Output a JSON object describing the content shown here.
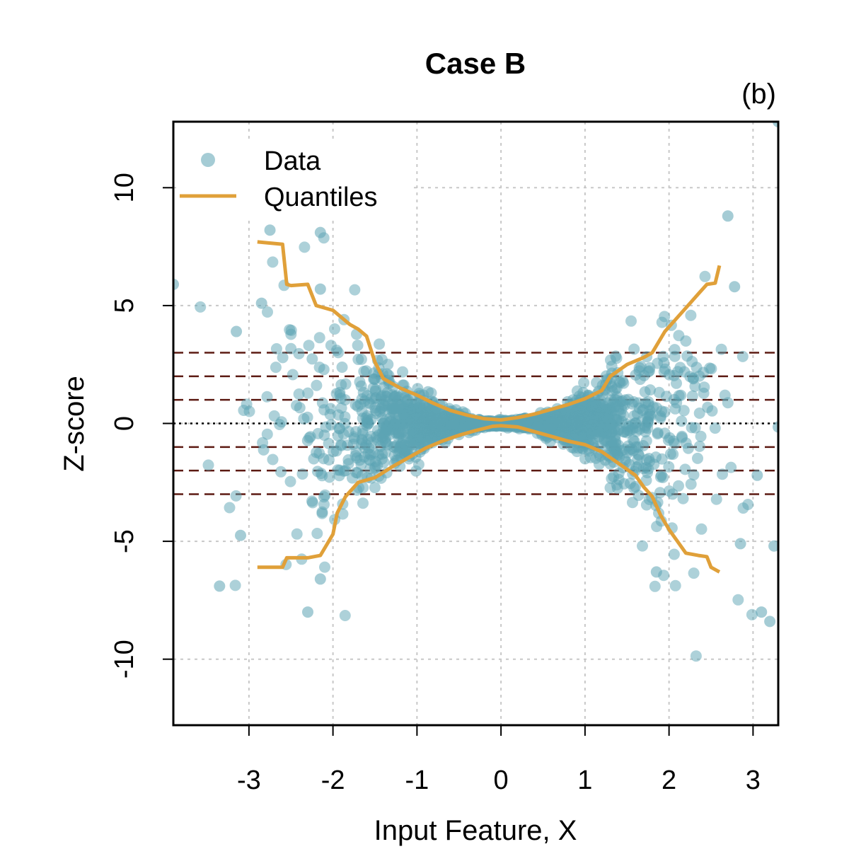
{
  "chart_data": {
    "type": "scatter",
    "title": "Case B",
    "panel_label": "(b)",
    "xlabel": "Input Feature, X",
    "ylabel": "Z-score",
    "xlim": [
      -3.9,
      3.3
    ],
    "ylim": [
      -12.8,
      12.8
    ],
    "x_ticks": [
      -3,
      -2,
      -1,
      0,
      1,
      2,
      3
    ],
    "y_ticks": [
      -10,
      -5,
      0,
      5,
      10
    ],
    "x_tick_labels": [
      "-3",
      "-2",
      "-1",
      "0",
      "1",
      "2",
      "3"
    ],
    "y_tick_labels": [
      "-10",
      "-5",
      "0",
      "5",
      "10"
    ],
    "grid": true,
    "legend": {
      "position": "top-left",
      "entries": [
        {
          "label": "Data",
          "kind": "point"
        },
        {
          "label": "Quantiles",
          "kind": "line"
        }
      ]
    },
    "colors": {
      "data": "#5ba3b3",
      "quantiles": "#e0a039",
      "reference_dashed": "#5c1a12",
      "zero_line": "#000000",
      "grid": "#c8c8c8"
    },
    "reference_lines_y": [
      -3,
      -2,
      -1,
      1,
      2,
      3
    ],
    "zero_line_y": 0,
    "data_model": {
      "n_points": 2600,
      "description": "Gaussian X, noise sd grows with |X|",
      "notable_points": [
        {
          "x": -3.9,
          "y": 5.9
        },
        {
          "x": -3.35,
          "y": -6.9
        },
        {
          "x": -3.1,
          "y": -4.75
        },
        {
          "x": -3.15,
          "y": 3.9
        },
        {
          "x": -2.85,
          "y": 5.1
        },
        {
          "x": -2.3,
          "y": -8.0
        },
        {
          "x": -2.15,
          "y": 8.1
        },
        {
          "x": -2.15,
          "y": 5.7
        },
        {
          "x": -2.15,
          "y": -6.6
        },
        {
          "x": -2.75,
          "y": 8.2
        },
        {
          "x": 2.7,
          "y": 8.8
        },
        {
          "x": 2.78,
          "y": 5.8
        },
        {
          "x": 3.1,
          "y": -8.0
        },
        {
          "x": 3.2,
          "y": -8.4
        },
        {
          "x": 3.25,
          "y": -5.2
        },
        {
          "x": 3.3,
          "y": 12.8
        },
        {
          "x": 3.3,
          "y": -0.15
        },
        {
          "x": 2.85,
          "y": -5.1
        },
        {
          "x": 3.05,
          "y": -2.2
        },
        {
          "x": 1.85,
          "y": -6.3
        }
      ]
    },
    "series": [
      {
        "name": "Upper quantile",
        "x": [
          -2.9,
          -2.6,
          -2.55,
          -2.5,
          -2.3,
          -2.2,
          -2.0,
          -1.8,
          -1.7,
          -1.6,
          -1.5,
          -1.4,
          -1.2,
          -1.0,
          -0.8,
          -0.6,
          -0.4,
          -0.2,
          0.0,
          0.2,
          0.4,
          0.6,
          0.8,
          1.0,
          1.2,
          1.3,
          1.5,
          1.7,
          1.8,
          1.95,
          2.1,
          2.25,
          2.35,
          2.45,
          2.55,
          2.6
        ],
        "values": [
          7.7,
          7.6,
          5.9,
          5.85,
          5.9,
          5.0,
          4.8,
          4.2,
          4.0,
          3.7,
          2.6,
          1.9,
          1.5,
          1.2,
          0.85,
          0.55,
          0.35,
          0.2,
          0.15,
          0.25,
          0.4,
          0.6,
          0.8,
          1.05,
          1.4,
          2.0,
          2.5,
          2.8,
          3.0,
          3.9,
          4.5,
          5.1,
          5.5,
          5.9,
          5.95,
          6.7
        ]
      },
      {
        "name": "Lower quantile",
        "x": [
          -2.9,
          -2.6,
          -2.55,
          -2.3,
          -2.15,
          -2.0,
          -1.95,
          -1.85,
          -1.7,
          -1.5,
          -1.3,
          -1.1,
          -0.9,
          -0.7,
          -0.5,
          -0.3,
          -0.1,
          0.0,
          0.2,
          0.4,
          0.6,
          0.8,
          1.0,
          1.2,
          1.4,
          1.6,
          1.7,
          1.8,
          1.9,
          2.0,
          2.1,
          2.2,
          2.35,
          2.45,
          2.5,
          2.6
        ],
        "values": [
          -6.1,
          -6.1,
          -5.7,
          -5.7,
          -5.6,
          -4.7,
          -3.8,
          -3.1,
          -2.5,
          -2.3,
          -1.85,
          -1.45,
          -1.05,
          -0.75,
          -0.5,
          -0.3,
          -0.12,
          -0.1,
          -0.15,
          -0.35,
          -0.55,
          -0.75,
          -0.9,
          -1.2,
          -1.7,
          -2.2,
          -2.7,
          -3.1,
          -3.9,
          -4.5,
          -5.0,
          -5.5,
          -5.6,
          -5.65,
          -6.1,
          -6.3
        ]
      }
    ]
  }
}
